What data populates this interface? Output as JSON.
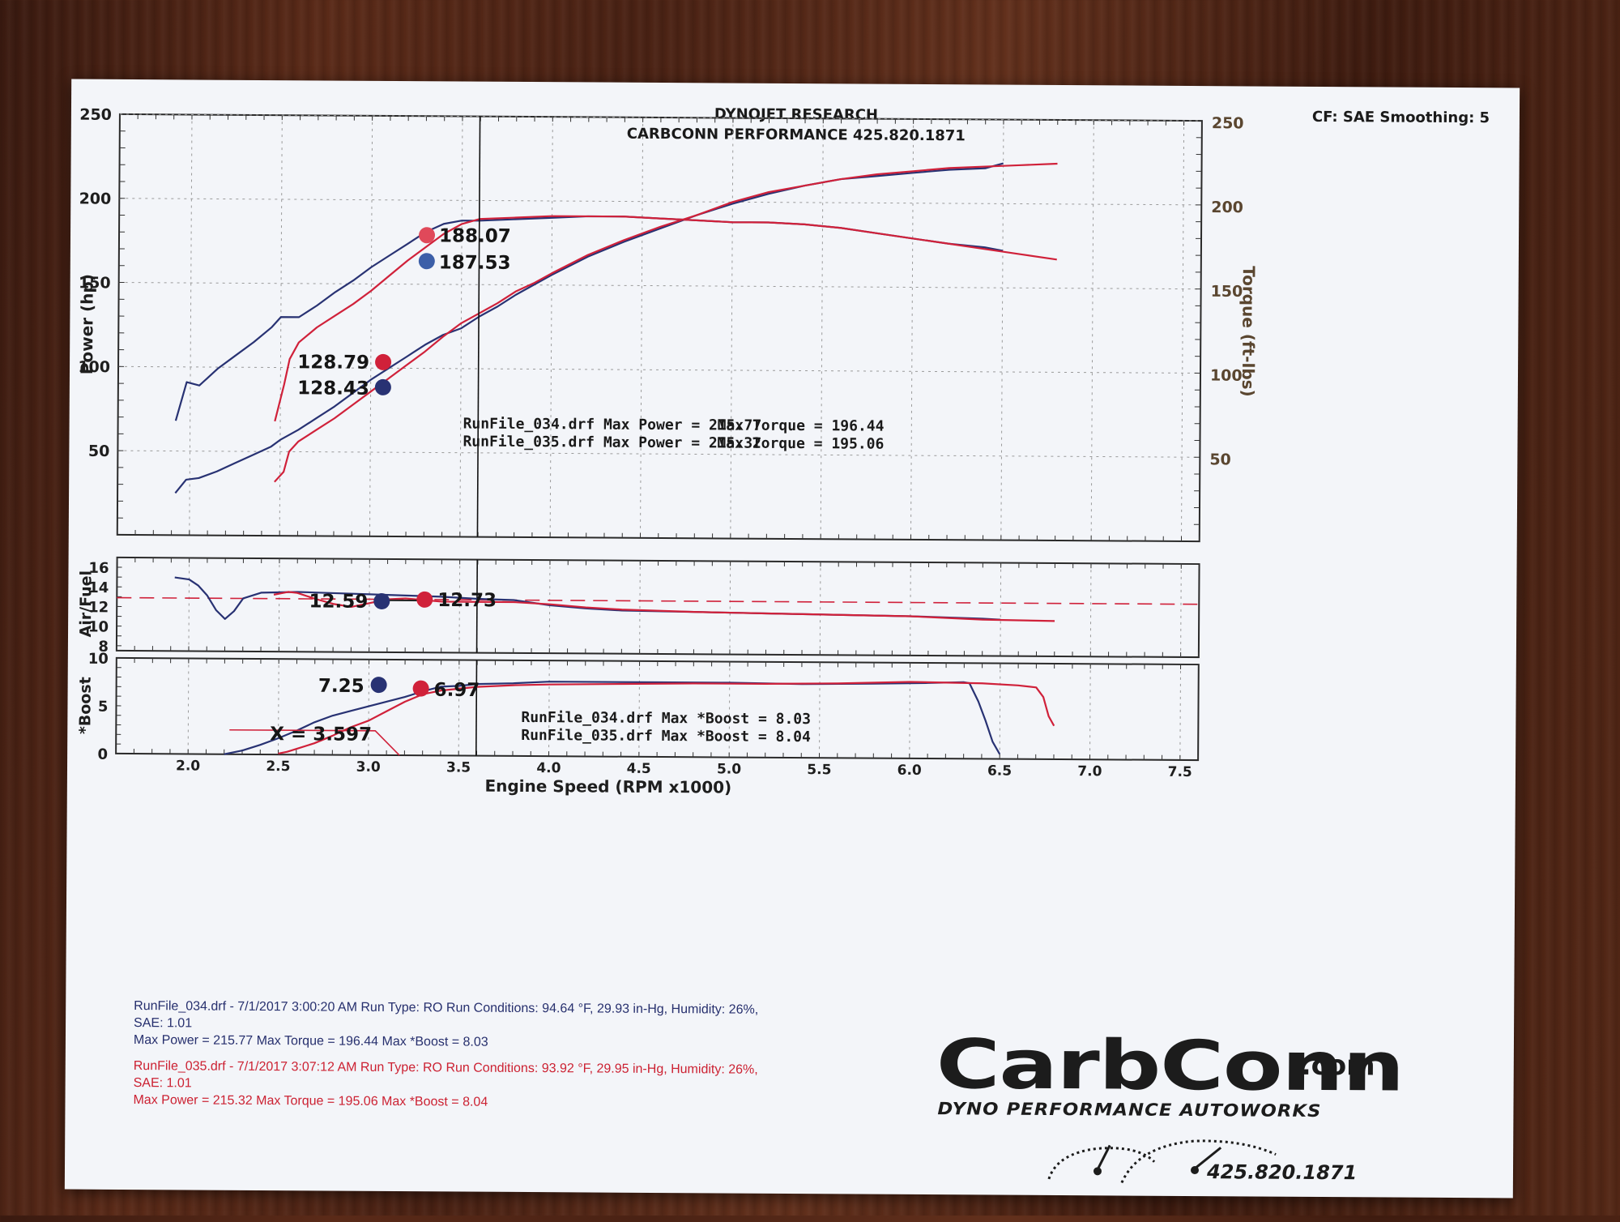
{
  "header": {
    "company": "DYNOJET RESEARCH",
    "shop": "CARBCONN PERFORMANCE 425.820.1871",
    "settings": "CF: SAE  Smoothing: 5"
  },
  "colors": {
    "run034": "#283273",
    "run035": "#d0213a",
    "afr_target": "#d0213a"
  },
  "chart_data": [
    {
      "type": "line",
      "title": "",
      "xlabel": "",
      "ylabel": "Power (hp)",
      "y2label": "Torque (ft-lbs)",
      "xlim": [
        1.6,
        7.6
      ],
      "ylim": [
        0,
        250
      ],
      "y2lim": [
        0,
        250
      ],
      "y_ticks": [
        50,
        100,
        150,
        200,
        250
      ],
      "y2_ticks": [
        50,
        100,
        150,
        200,
        250
      ],
      "cursor_x": 3.597,
      "series": [
        {
          "run": "RunFile_034.drf",
          "quantity": "Power",
          "axis": "left",
          "x": [
            1.92,
            1.98,
            2.05,
            2.15,
            2.25,
            2.35,
            2.45,
            2.5,
            2.6,
            2.7,
            2.8,
            2.9,
            3.0,
            3.1,
            3.2,
            3.3,
            3.4,
            3.5,
            3.6,
            3.7,
            3.8,
            3.9,
            4.0,
            4.2,
            4.4,
            4.6,
            4.8,
            5.0,
            5.2,
            5.4,
            5.6,
            5.8,
            6.0,
            6.2,
            6.4,
            6.5
          ],
          "y": [
            25,
            33,
            34,
            38,
            43,
            48,
            53,
            57,
            63,
            70,
            77,
            85,
            93,
            100,
            107,
            114,
            120,
            124,
            131,
            137,
            144,
            150,
            156,
            167,
            176,
            184,
            192,
            199,
            205,
            210,
            214,
            216,
            218,
            220,
            221,
            224
          ]
        },
        {
          "run": "RunFile_035.drf",
          "quantity": "Power",
          "axis": "left",
          "x": [
            2.47,
            2.52,
            2.55,
            2.6,
            2.7,
            2.8,
            2.9,
            3.0,
            3.1,
            3.2,
            3.3,
            3.4,
            3.5,
            3.6,
            3.7,
            3.8,
            3.9,
            4.0,
            4.2,
            4.4,
            4.6,
            4.8,
            5.0,
            5.2,
            5.4,
            5.6,
            5.8,
            6.0,
            6.2,
            6.4,
            6.6,
            6.8
          ],
          "y": [
            32,
            38,
            50,
            56,
            63,
            70,
            78,
            86,
            94,
            102,
            110,
            119,
            127,
            133,
            139,
            146,
            151,
            157,
            168,
            177,
            185,
            192,
            200,
            206,
            210,
            214,
            217,
            219,
            221,
            222,
            223,
            224
          ]
        },
        {
          "run": "RunFile_034.drf",
          "quantity": "Torque",
          "axis": "right",
          "x": [
            1.92,
            1.98,
            2.05,
            2.15,
            2.25,
            2.35,
            2.45,
            2.5,
            2.6,
            2.7,
            2.8,
            2.9,
            3.0,
            3.1,
            3.2,
            3.3,
            3.4,
            3.5,
            3.6,
            3.8,
            4.0,
            4.2,
            4.4,
            4.6,
            4.8,
            5.0,
            5.2,
            5.4,
            5.6,
            5.8,
            6.0,
            6.2,
            6.4,
            6.5
          ],
          "y": [
            68,
            91,
            89,
            99,
            107,
            115,
            124,
            130,
            130,
            137,
            145,
            152,
            160,
            167,
            174,
            181,
            186,
            188,
            188,
            189,
            190,
            191,
            191,
            190,
            189,
            188,
            188,
            187,
            185,
            182,
            179,
            176,
            174,
            172
          ]
        },
        {
          "run": "RunFile_035.drf",
          "quantity": "Torque",
          "axis": "right",
          "x": [
            2.47,
            2.52,
            2.55,
            2.6,
            2.7,
            2.8,
            2.9,
            3.0,
            3.1,
            3.2,
            3.3,
            3.4,
            3.5,
            3.6,
            3.8,
            4.0,
            4.2,
            4.4,
            4.6,
            4.8,
            5.0,
            5.2,
            5.4,
            5.6,
            5.8,
            6.0,
            6.2,
            6.4,
            6.6,
            6.8
          ],
          "y": [
            68,
            90,
            105,
            115,
            124,
            131,
            138,
            146,
            155,
            164,
            172,
            180,
            186,
            189,
            190,
            191,
            191,
            191,
            190,
            189,
            188,
            188,
            187,
            185,
            182,
            179,
            176,
            173,
            170,
            167
          ]
        }
      ],
      "cursor_labels": {
        "RunFile_035.drf": {
          "power": "128.79",
          "torque": "188.07"
        },
        "RunFile_034.drf": {
          "power": "128.43",
          "torque": "187.53"
        }
      },
      "summary": [
        {
          "label": "RunFile_034.drf Max Power = 215.77",
          "torque": "Max Torque = 196.44"
        },
        {
          "label": "RunFile_035.drf Max Power = 215.32",
          "torque": "Max Torque = 195.06"
        }
      ]
    },
    {
      "type": "line",
      "ylabel": "Air/Fuel",
      "xlim": [
        1.6,
        7.6
      ],
      "ylim": [
        7.5,
        17
      ],
      "y_ticks": [
        8,
        10,
        12,
        14,
        16
      ],
      "target": 12.9,
      "series": [
        {
          "run": "RunFile_034.drf",
          "x": [
            1.92,
            2.0,
            2.05,
            2.1,
            2.15,
            2.2,
            2.25,
            2.3,
            2.4,
            2.6,
            2.8,
            3.0,
            3.2,
            3.4,
            3.6,
            3.8,
            4.0,
            4.2,
            4.4,
            4.8,
            5.2,
            5.6,
            6.0,
            6.4,
            6.5
          ],
          "y": [
            15.0,
            14.8,
            14.2,
            13.2,
            11.7,
            10.8,
            11.6,
            12.9,
            13.5,
            13.6,
            13.5,
            13.4,
            13.3,
            13.2,
            13.0,
            12.9,
            12.4,
            12.1,
            11.9,
            11.8,
            11.7,
            11.6,
            11.5,
            11.3,
            11.2
          ]
        },
        {
          "run": "RunFile_035.drf",
          "x": [
            2.47,
            2.55,
            2.6,
            2.7,
            2.8,
            2.9,
            3.0,
            3.1,
            3.2,
            3.4,
            3.6,
            3.8,
            4.0,
            4.2,
            4.4,
            4.8,
            5.2,
            5.6,
            6.0,
            6.4,
            6.8
          ],
          "y": [
            13.3,
            13.6,
            13.5,
            12.9,
            12.4,
            12.1,
            12.5,
            12.9,
            13.0,
            12.7,
            12.7,
            12.7,
            12.5,
            12.2,
            12.0,
            11.8,
            11.7,
            11.6,
            11.5,
            11.2,
            11.1
          ]
        }
      ],
      "cursor_labels": {
        "RunFile_034.drf": "12.59",
        "RunFile_035.drf": "12.73"
      }
    },
    {
      "type": "line",
      "ylabel": "*Boost",
      "xlim": [
        1.6,
        7.6
      ],
      "ylim": [
        0,
        10
      ],
      "y_ticks": [
        0,
        5,
        10
      ],
      "xlabel": "Engine Speed (RPM x1000)",
      "x_ticks": [
        "2.0",
        "2.5",
        "3.0",
        "3.5",
        "4.0",
        "4.5",
        "5.0",
        "5.5",
        "6.0",
        "6.5",
        "7.0",
        "7.5"
      ],
      "series": [
        {
          "run": "RunFile_034.drf",
          "x": [
            2.2,
            2.3,
            2.4,
            2.5,
            2.6,
            2.7,
            2.8,
            2.9,
            3.0,
            3.1,
            3.2,
            3.3,
            3.4,
            3.5,
            3.6,
            3.8,
            4.0,
            4.3,
            4.6,
            5.0,
            5.4,
            5.8,
            6.1,
            6.3,
            6.33,
            6.38,
            6.42,
            6.46,
            6.5
          ],
          "y": [
            0,
            0.4,
            1.0,
            1.7,
            2.5,
            3.4,
            4.1,
            4.6,
            5.1,
            5.6,
            6.1,
            6.7,
            7.2,
            7.3,
            7.5,
            7.6,
            7.8,
            7.8,
            7.8,
            7.8,
            7.7,
            7.8,
            7.9,
            8.0,
            7.9,
            6.0,
            4.0,
            1.8,
            0.5
          ]
        },
        {
          "run": "RunFile_035.drf",
          "x": [
            2.5,
            2.55,
            2.6,
            2.7,
            2.8,
            2.9,
            3.0,
            3.1,
            3.2,
            3.3,
            3.4,
            3.5,
            3.6,
            3.8,
            4.0,
            4.4,
            4.8,
            5.2,
            5.6,
            6.0,
            6.4,
            6.6,
            6.7,
            6.74,
            6.77,
            6.8
          ],
          "y": [
            0.1,
            0.3,
            0.6,
            1.2,
            2.0,
            2.9,
            3.6,
            4.6,
            5.6,
            6.4,
            6.8,
            7.0,
            7.2,
            7.4,
            7.5,
            7.6,
            7.7,
            7.7,
            7.8,
            8.0,
            7.9,
            7.7,
            7.5,
            6.5,
            4.5,
            3.5
          ]
        }
      ],
      "cursor_labels": {
        "RunFile_034.drf": "7.25",
        "RunFile_035.drf": "6.97"
      },
      "cursor_readout": "X = 3.597",
      "summary": [
        "RunFile_034.drf Max *Boost = 8.03",
        "RunFile_035.drf Max *Boost = 8.04"
      ]
    }
  ],
  "footer": {
    "run034": [
      "RunFile_034.drf - 7/1/2017 3:00:20 AM  Run Type: RO  Run Conditions: 94.64 °F, 29.93 in-Hg,  Humidity:  26%,",
      "SAE: 1.01",
      "Max Power = 215.77  Max Torque = 196.44  Max *Boost = 8.03"
    ],
    "run035": [
      "RunFile_035.drf - 7/1/2017 3:07:12 AM  Run Type: RO  Run Conditions: 93.92 °F, 29.95 in-Hg,  Humidity:  26%,",
      "SAE: 1.01",
      "Max Power = 215.32  Max Torque = 195.06  Max *Boost = 8.04"
    ]
  },
  "logo": {
    "main": "CarbConn",
    "com": ".com",
    "tagline": "DYNO PERFORMANCE AUTOWORKS",
    "phone": "425.820.1871",
    "icon": "gauge-icon"
  }
}
